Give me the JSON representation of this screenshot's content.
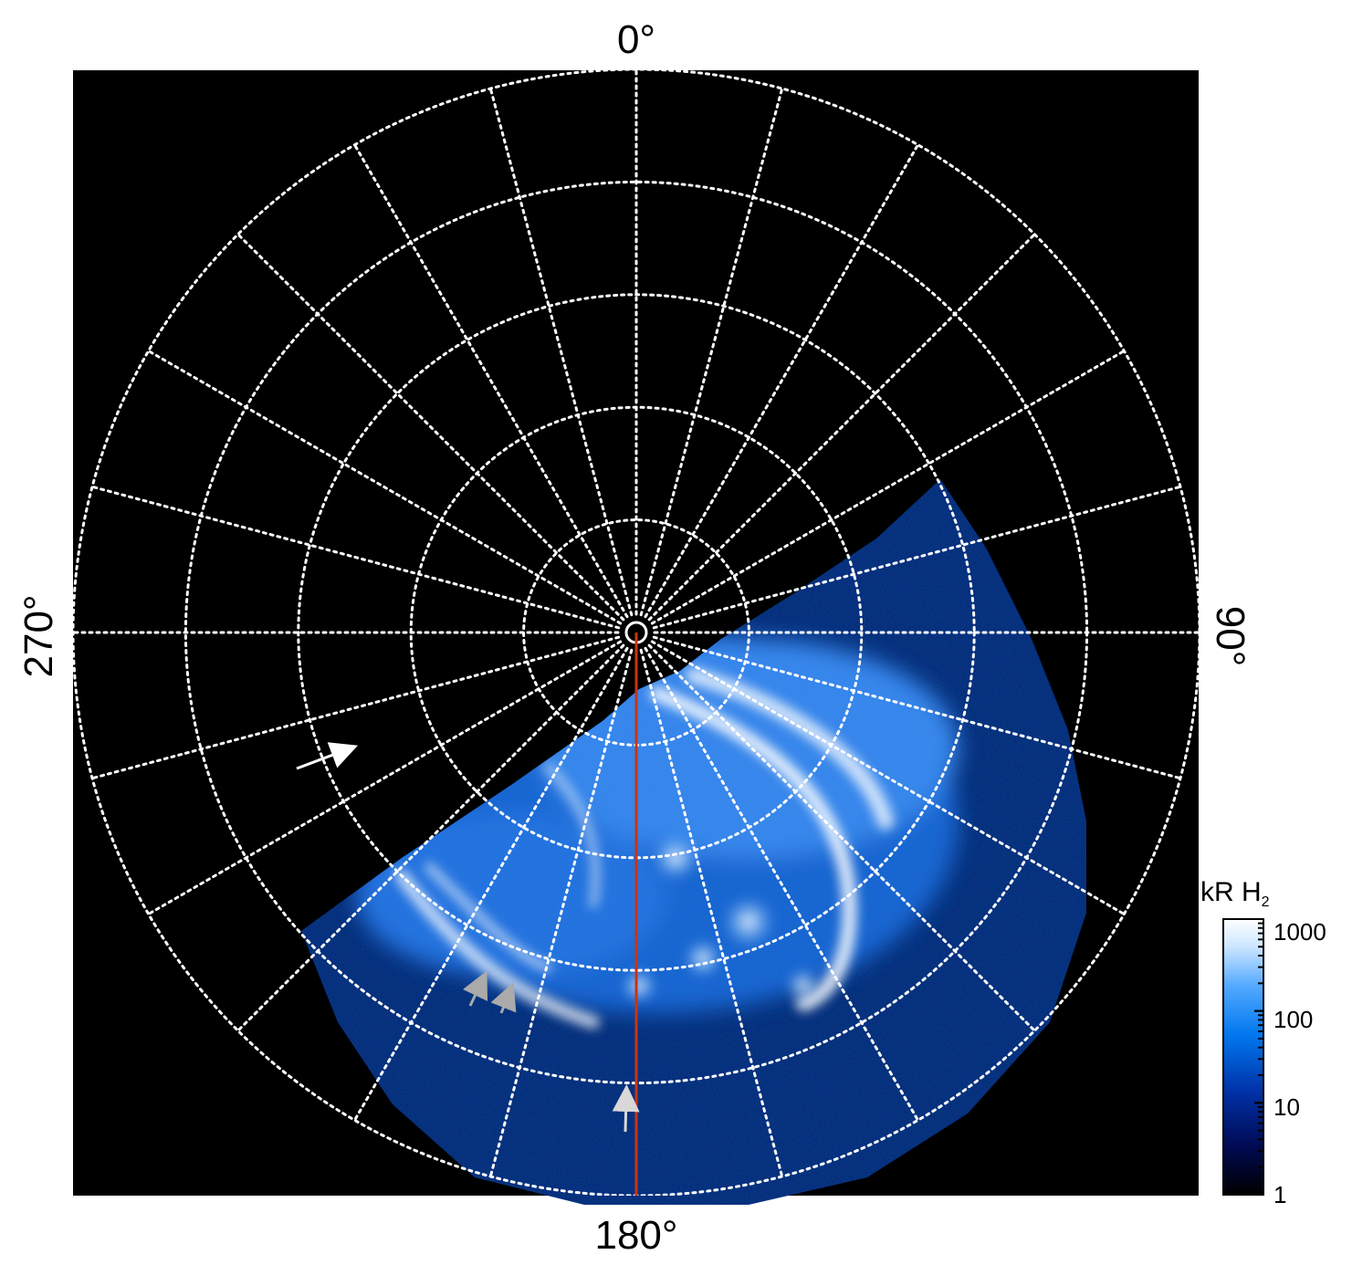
{
  "labels": {
    "top": "0°",
    "right": "90°",
    "bottom": "180°",
    "left": "270°"
  },
  "colorbar": {
    "title_main": "kR H",
    "title_sub": "2",
    "ticks": [
      "1000",
      "100",
      "10",
      "1"
    ],
    "scale": "log",
    "range": [
      1,
      1000
    ],
    "colors": [
      "#000000",
      "#000a55",
      "#0033aa",
      "#0077ee",
      "#55aaff",
      "#cce6ff",
      "#ffffff"
    ]
  },
  "grid": {
    "parallels": 5,
    "meridian_step_deg": 15,
    "line_color": "#ffffff",
    "style": "dotted"
  },
  "overlay": {
    "meridian_color": "#cc3311"
  },
  "arrows": [
    {
      "name": "white-arrow",
      "color": "#ffffff"
    },
    {
      "name": "grey-arrow-a",
      "color": "#aaaaaa"
    },
    {
      "name": "grey-arrow-b",
      "color": "#aaaaaa"
    },
    {
      "name": "grey-arrow-c",
      "color": "#cccccc"
    }
  ]
}
